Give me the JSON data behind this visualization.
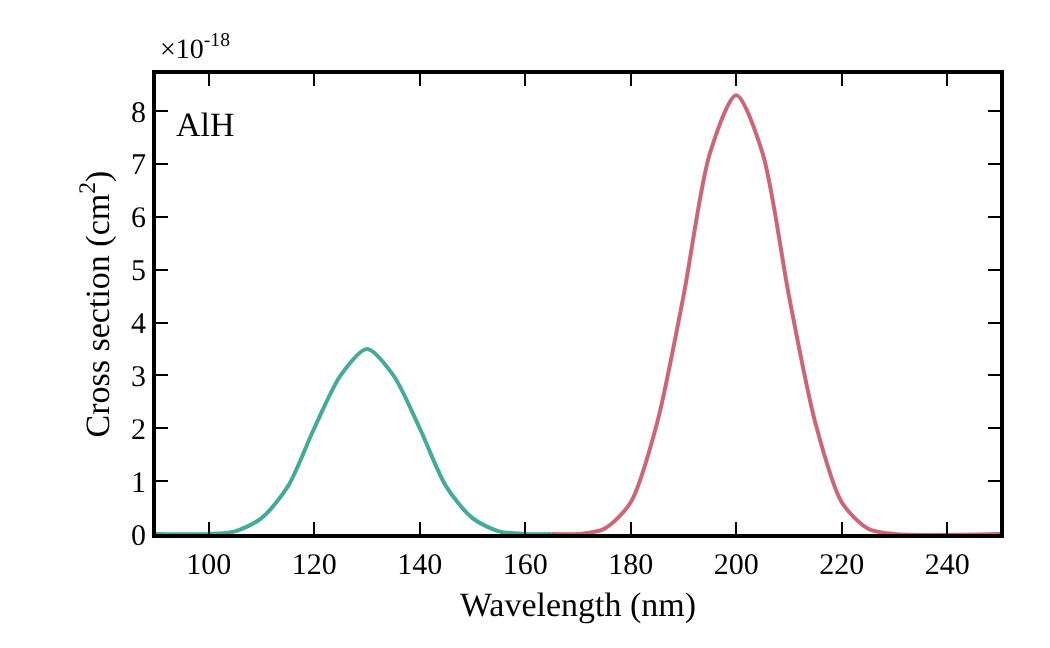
{
  "chart_data": {
    "type": "line",
    "xlabel": "Wavelength (nm)",
    "ylabel": "Cross section (cm$^{2}$)",
    "annotations": [
      "×10$^{-18}$",
      "AlH"
    ],
    "series": [
      {
        "color": "#44aa99",
        "x": [
          90,
          100,
          105,
          110,
          115,
          120,
          125,
          130,
          135,
          140,
          145,
          150,
          155,
          160,
          165
        ],
        "values": [
          0,
          0,
          0.05,
          0.3,
          0.9,
          2.0,
          3.0,
          3.5,
          3.0,
          2.0,
          0.9,
          0.3,
          0.05,
          0,
          0
        ]
      },
      {
        "color": "#cc6677",
        "x": [
          165,
          170,
          175,
          180,
          185,
          190,
          195,
          200,
          205,
          210,
          215,
          220,
          225,
          230,
          250
        ],
        "values": [
          0,
          0,
          0.1,
          0.6,
          2.1,
          4.5,
          7.2,
          8.3,
          7.2,
          4.5,
          2.1,
          0.6,
          0.1,
          0,
          0
        ]
      }
    ],
    "xlim": [
      90,
      250
    ],
    "xticks": [
      100,
      120,
      140,
      160,
      180,
      200,
      220,
      240
    ],
    "ylim": [
      0,
      8.7
    ],
    "yticks": [
      0,
      1,
      2,
      3,
      4,
      5,
      6,
      7,
      8
    ],
    "marker": "none",
    "line_style": "solid"
  }
}
